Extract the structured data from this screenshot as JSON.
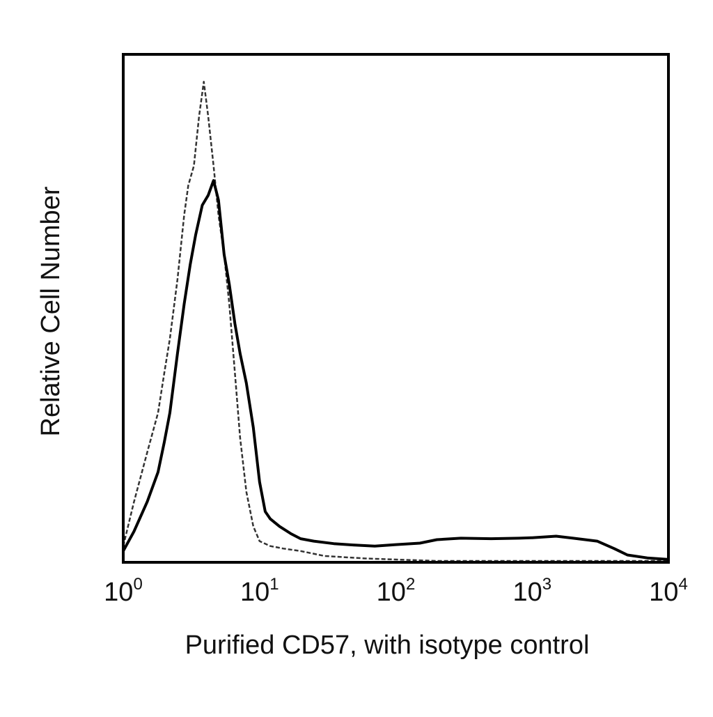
{
  "chart_data": {
    "type": "line",
    "chart_kind": "histogram",
    "title": "",
    "xlabel": "Purified CD57, with isotype control",
    "ylabel": "Relative Cell Number",
    "x_scale": "log",
    "xlim": [
      1,
      10000
    ],
    "ylim": [
      0,
      1
    ],
    "y_ticks_shown": false,
    "grid": false,
    "legend": "none",
    "frame": true,
    "x_ticks": [
      {
        "value": 1,
        "base": "10",
        "exp": "0"
      },
      {
        "value": 10,
        "base": "10",
        "exp": "1"
      },
      {
        "value": 100,
        "base": "10",
        "exp": "2"
      },
      {
        "value": 1000,
        "base": "10",
        "exp": "3"
      },
      {
        "value": 10000,
        "base": "10",
        "exp": "4"
      }
    ],
    "series": [
      {
        "line_style": "dashed",
        "color": "#333333",
        "points": [
          [
            1.0,
            0.03
          ],
          [
            1.2,
            0.12
          ],
          [
            1.5,
            0.22
          ],
          [
            1.8,
            0.3
          ],
          [
            2.0,
            0.38
          ],
          [
            2.2,
            0.45
          ],
          [
            2.5,
            0.57
          ],
          [
            2.8,
            0.7
          ],
          [
            3.0,
            0.76
          ],
          [
            3.3,
            0.8
          ],
          [
            3.6,
            0.9
          ],
          [
            3.9,
            0.97
          ],
          [
            4.2,
            0.9
          ],
          [
            4.6,
            0.8
          ],
          [
            5.0,
            0.7
          ],
          [
            5.5,
            0.62
          ],
          [
            6.0,
            0.52
          ],
          [
            6.6,
            0.38
          ],
          [
            7.2,
            0.25
          ],
          [
            8.0,
            0.14
          ],
          [
            9.0,
            0.07
          ],
          [
            10.0,
            0.04
          ],
          [
            12.0,
            0.03
          ],
          [
            15.0,
            0.025
          ],
          [
            20.0,
            0.02
          ],
          [
            30.0,
            0.01
          ],
          [
            60.0,
            0.005
          ],
          [
            200.0,
            0.0
          ],
          [
            10000.0,
            0.0
          ]
        ]
      },
      {
        "line_style": "solid",
        "color": "#000000",
        "points": [
          [
            1.0,
            0.02
          ],
          [
            1.2,
            0.06
          ],
          [
            1.5,
            0.12
          ],
          [
            1.8,
            0.18
          ],
          [
            2.0,
            0.24
          ],
          [
            2.2,
            0.3
          ],
          [
            2.5,
            0.42
          ],
          [
            2.8,
            0.52
          ],
          [
            3.1,
            0.6
          ],
          [
            3.4,
            0.66
          ],
          [
            3.8,
            0.72
          ],
          [
            4.2,
            0.74
          ],
          [
            4.6,
            0.77
          ],
          [
            5.0,
            0.73
          ],
          [
            5.5,
            0.62
          ],
          [
            6.0,
            0.56
          ],
          [
            6.6,
            0.48
          ],
          [
            7.2,
            0.42
          ],
          [
            8.0,
            0.36
          ],
          [
            9.0,
            0.27
          ],
          [
            10.0,
            0.16
          ],
          [
            11.0,
            0.1
          ],
          [
            12.0,
            0.085
          ],
          [
            14.0,
            0.07
          ],
          [
            17.0,
            0.055
          ],
          [
            20.0,
            0.045
          ],
          [
            25.0,
            0.04
          ],
          [
            35.0,
            0.035
          ],
          [
            50.0,
            0.032
          ],
          [
            70.0,
            0.03
          ],
          [
            100.0,
            0.033
          ],
          [
            150.0,
            0.036
          ],
          [
            200.0,
            0.043
          ],
          [
            300.0,
            0.046
          ],
          [
            500.0,
            0.045
          ],
          [
            800.0,
            0.046
          ],
          [
            1000.0,
            0.047
          ],
          [
            1500.0,
            0.05
          ],
          [
            2000.0,
            0.046
          ],
          [
            3000.0,
            0.04
          ],
          [
            4000.0,
            0.025
          ],
          [
            5000.0,
            0.012
          ],
          [
            7000.0,
            0.006
          ],
          [
            10000.0,
            0.003
          ]
        ]
      }
    ]
  }
}
